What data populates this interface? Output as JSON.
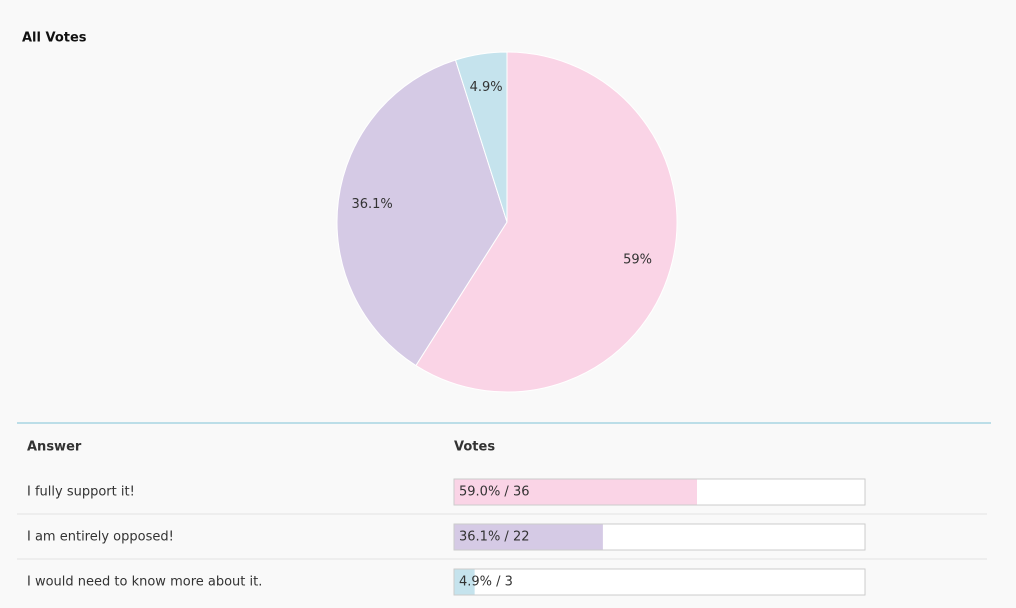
{
  "chart_data": {
    "type": "pie",
    "title": "All Votes",
    "values": [
      59,
      36.1,
      4.9
    ],
    "value_labels": [
      "59%",
      "36.1%",
      "4.9%"
    ],
    "colors": [
      "#fad4e6",
      "#d5cae5",
      "#c5e3ed"
    ]
  },
  "table": {
    "headers": [
      "Answer",
      "Votes"
    ],
    "rows": [
      {
        "answer": "I fully support it!",
        "votes_label": "59.0% / 36",
        "percent": 59.0
      },
      {
        "answer": "I am entirely opposed!",
        "votes_label": "36.1% / 22",
        "percent": 36.1
      },
      {
        "answer": "I would need to know more about it.",
        "votes_label": "4.9% / 3",
        "percent": 4.9
      }
    ]
  }
}
